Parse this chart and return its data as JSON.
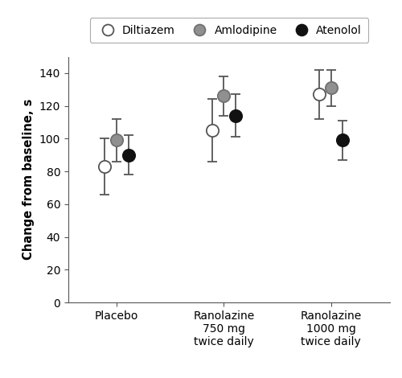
{
  "groups": [
    "Placebo",
    "Ranolazine\n750 mg\ntwice daily",
    "Ranolazine\n1000 mg\ntwice daily"
  ],
  "group_positions": [
    1,
    2,
    3
  ],
  "series": [
    {
      "label": "Diltiazem",
      "color": "#ffffff",
      "edge_color": "#555555",
      "values": [
        83,
        105,
        127
      ],
      "errors": [
        17,
        19,
        15
      ]
    },
    {
      "label": "Amlodipine",
      "color": "#909090",
      "edge_color": "#707070",
      "values": [
        99,
        126,
        131
      ],
      "errors": [
        13,
        12,
        11
      ]
    },
    {
      "label": "Atenolol",
      "color": "#111111",
      "edge_color": "#111111",
      "values": [
        90,
        114,
        99
      ],
      "errors": [
        12,
        13,
        12
      ]
    }
  ],
  "offsets": [
    -0.11,
    0.0,
    0.11
  ],
  "ylabel": "Change from baseline, s",
  "ylim": [
    0,
    150
  ],
  "yticks": [
    0,
    20,
    40,
    60,
    80,
    100,
    120,
    140
  ],
  "marker_size": 11,
  "capsize": 4,
  "elinewidth": 1.3,
  "capthick": 1.3,
  "background_color": "#ffffff"
}
